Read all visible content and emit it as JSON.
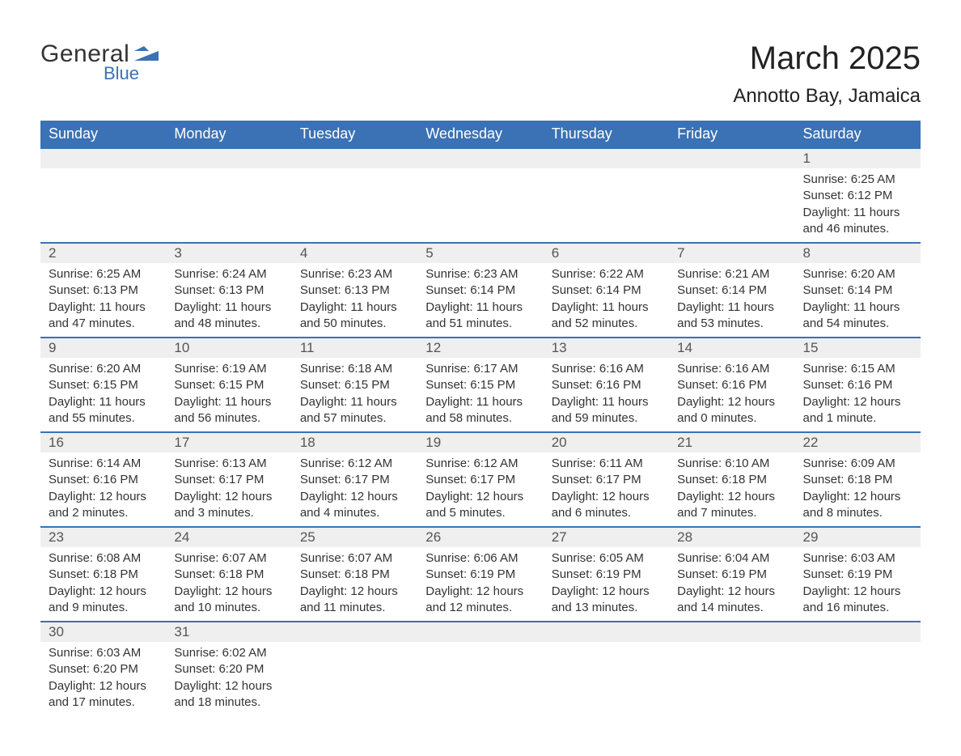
{
  "logo": {
    "top": "General",
    "bottom": "Blue",
    "accent_color": "#3a72b5"
  },
  "title": {
    "month": "March 2025",
    "location": "Annotto Bay, Jamaica"
  },
  "calendar": {
    "header_bg": "#3a72b5",
    "header_fg": "#ffffff",
    "daynum_bg": "#efefef",
    "divider_color": "#3a72b5",
    "days_of_week": [
      "Sunday",
      "Monday",
      "Tuesday",
      "Wednesday",
      "Thursday",
      "Friday",
      "Saturday"
    ],
    "weeks": [
      [
        null,
        null,
        null,
        null,
        null,
        null,
        {
          "day": "1",
          "sunrise": "Sunrise: 6:25 AM",
          "sunset": "Sunset: 6:12 PM",
          "daylight": "Daylight: 11 hours and 46 minutes."
        }
      ],
      [
        {
          "day": "2",
          "sunrise": "Sunrise: 6:25 AM",
          "sunset": "Sunset: 6:13 PM",
          "daylight": "Daylight: 11 hours and 47 minutes."
        },
        {
          "day": "3",
          "sunrise": "Sunrise: 6:24 AM",
          "sunset": "Sunset: 6:13 PM",
          "daylight": "Daylight: 11 hours and 48 minutes."
        },
        {
          "day": "4",
          "sunrise": "Sunrise: 6:23 AM",
          "sunset": "Sunset: 6:13 PM",
          "daylight": "Daylight: 11 hours and 50 minutes."
        },
        {
          "day": "5",
          "sunrise": "Sunrise: 6:23 AM",
          "sunset": "Sunset: 6:14 PM",
          "daylight": "Daylight: 11 hours and 51 minutes."
        },
        {
          "day": "6",
          "sunrise": "Sunrise: 6:22 AM",
          "sunset": "Sunset: 6:14 PM",
          "daylight": "Daylight: 11 hours and 52 minutes."
        },
        {
          "day": "7",
          "sunrise": "Sunrise: 6:21 AM",
          "sunset": "Sunset: 6:14 PM",
          "daylight": "Daylight: 11 hours and 53 minutes."
        },
        {
          "day": "8",
          "sunrise": "Sunrise: 6:20 AM",
          "sunset": "Sunset: 6:14 PM",
          "daylight": "Daylight: 11 hours and 54 minutes."
        }
      ],
      [
        {
          "day": "9",
          "sunrise": "Sunrise: 6:20 AM",
          "sunset": "Sunset: 6:15 PM",
          "daylight": "Daylight: 11 hours and 55 minutes."
        },
        {
          "day": "10",
          "sunrise": "Sunrise: 6:19 AM",
          "sunset": "Sunset: 6:15 PM",
          "daylight": "Daylight: 11 hours and 56 minutes."
        },
        {
          "day": "11",
          "sunrise": "Sunrise: 6:18 AM",
          "sunset": "Sunset: 6:15 PM",
          "daylight": "Daylight: 11 hours and 57 minutes."
        },
        {
          "day": "12",
          "sunrise": "Sunrise: 6:17 AM",
          "sunset": "Sunset: 6:15 PM",
          "daylight": "Daylight: 11 hours and 58 minutes."
        },
        {
          "day": "13",
          "sunrise": "Sunrise: 6:16 AM",
          "sunset": "Sunset: 6:16 PM",
          "daylight": "Daylight: 11 hours and 59 minutes."
        },
        {
          "day": "14",
          "sunrise": "Sunrise: 6:16 AM",
          "sunset": "Sunset: 6:16 PM",
          "daylight": "Daylight: 12 hours and 0 minutes."
        },
        {
          "day": "15",
          "sunrise": "Sunrise: 6:15 AM",
          "sunset": "Sunset: 6:16 PM",
          "daylight": "Daylight: 12 hours and 1 minute."
        }
      ],
      [
        {
          "day": "16",
          "sunrise": "Sunrise: 6:14 AM",
          "sunset": "Sunset: 6:16 PM",
          "daylight": "Daylight: 12 hours and 2 minutes."
        },
        {
          "day": "17",
          "sunrise": "Sunrise: 6:13 AM",
          "sunset": "Sunset: 6:17 PM",
          "daylight": "Daylight: 12 hours and 3 minutes."
        },
        {
          "day": "18",
          "sunrise": "Sunrise: 6:12 AM",
          "sunset": "Sunset: 6:17 PM",
          "daylight": "Daylight: 12 hours and 4 minutes."
        },
        {
          "day": "19",
          "sunrise": "Sunrise: 6:12 AM",
          "sunset": "Sunset: 6:17 PM",
          "daylight": "Daylight: 12 hours and 5 minutes."
        },
        {
          "day": "20",
          "sunrise": "Sunrise: 6:11 AM",
          "sunset": "Sunset: 6:17 PM",
          "daylight": "Daylight: 12 hours and 6 minutes."
        },
        {
          "day": "21",
          "sunrise": "Sunrise: 6:10 AM",
          "sunset": "Sunset: 6:18 PM",
          "daylight": "Daylight: 12 hours and 7 minutes."
        },
        {
          "day": "22",
          "sunrise": "Sunrise: 6:09 AM",
          "sunset": "Sunset: 6:18 PM",
          "daylight": "Daylight: 12 hours and 8 minutes."
        }
      ],
      [
        {
          "day": "23",
          "sunrise": "Sunrise: 6:08 AM",
          "sunset": "Sunset: 6:18 PM",
          "daylight": "Daylight: 12 hours and 9 minutes."
        },
        {
          "day": "24",
          "sunrise": "Sunrise: 6:07 AM",
          "sunset": "Sunset: 6:18 PM",
          "daylight": "Daylight: 12 hours and 10 minutes."
        },
        {
          "day": "25",
          "sunrise": "Sunrise: 6:07 AM",
          "sunset": "Sunset: 6:18 PM",
          "daylight": "Daylight: 12 hours and 11 minutes."
        },
        {
          "day": "26",
          "sunrise": "Sunrise: 6:06 AM",
          "sunset": "Sunset: 6:19 PM",
          "daylight": "Daylight: 12 hours and 12 minutes."
        },
        {
          "day": "27",
          "sunrise": "Sunrise: 6:05 AM",
          "sunset": "Sunset: 6:19 PM",
          "daylight": "Daylight: 12 hours and 13 minutes."
        },
        {
          "day": "28",
          "sunrise": "Sunrise: 6:04 AM",
          "sunset": "Sunset: 6:19 PM",
          "daylight": "Daylight: 12 hours and 14 minutes."
        },
        {
          "day": "29",
          "sunrise": "Sunrise: 6:03 AM",
          "sunset": "Sunset: 6:19 PM",
          "daylight": "Daylight: 12 hours and 16 minutes."
        }
      ],
      [
        {
          "day": "30",
          "sunrise": "Sunrise: 6:03 AM",
          "sunset": "Sunset: 6:20 PM",
          "daylight": "Daylight: 12 hours and 17 minutes."
        },
        {
          "day": "31",
          "sunrise": "Sunrise: 6:02 AM",
          "sunset": "Sunset: 6:20 PM",
          "daylight": "Daylight: 12 hours and 18 minutes."
        },
        null,
        null,
        null,
        null,
        null
      ]
    ]
  }
}
